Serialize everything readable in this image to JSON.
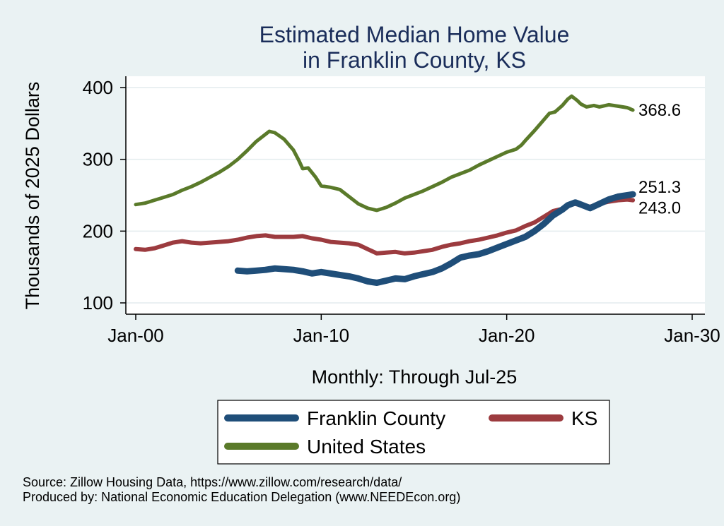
{
  "chart_data": {
    "type": "line",
    "title_line1": "Estimated Median Home Value",
    "title_line2": "in Franklin County, KS",
    "xlabel": "Monthly: Through Jul-25",
    "ylabel": "Thousands of 2025 Dollars",
    "xlim": [
      2000.0,
      2030.0
    ],
    "ylim": [
      100,
      400
    ],
    "x_ticks": [
      {
        "value": 2000,
        "label": "Jan-00"
      },
      {
        "value": 2010,
        "label": "Jan-10"
      },
      {
        "value": 2020,
        "label": "Jan-20"
      },
      {
        "value": 2030,
        "label": "Jan-30"
      }
    ],
    "y_ticks": [
      100,
      200,
      300,
      400
    ],
    "grid": true,
    "legend_position": "bottom",
    "series": [
      {
        "name": "United States",
        "color": "#5a7a2a",
        "end_label": "368.6",
        "points": [
          [
            2000.0,
            237
          ],
          [
            2000.5,
            239
          ],
          [
            2001.0,
            243
          ],
          [
            2001.5,
            247
          ],
          [
            2002.0,
            251
          ],
          [
            2002.5,
            257
          ],
          [
            2003.0,
            262
          ],
          [
            2003.5,
            268
          ],
          [
            2004.0,
            275
          ],
          [
            2004.5,
            282
          ],
          [
            2005.0,
            290
          ],
          [
            2005.5,
            300
          ],
          [
            2006.0,
            312
          ],
          [
            2006.5,
            325
          ],
          [
            2007.0,
            335
          ],
          [
            2007.2,
            339
          ],
          [
            2007.5,
            337
          ],
          [
            2008.0,
            328
          ],
          [
            2008.5,
            313
          ],
          [
            2008.8,
            298
          ],
          [
            2009.0,
            287
          ],
          [
            2009.3,
            288
          ],
          [
            2009.7,
            275
          ],
          [
            2010.0,
            263
          ],
          [
            2010.5,
            261
          ],
          [
            2011.0,
            258
          ],
          [
            2011.5,
            248
          ],
          [
            2012.0,
            238
          ],
          [
            2012.5,
            232
          ],
          [
            2013.0,
            229
          ],
          [
            2013.5,
            233
          ],
          [
            2014.0,
            239
          ],
          [
            2014.5,
            246
          ],
          [
            2015.0,
            251
          ],
          [
            2015.5,
            256
          ],
          [
            2016.0,
            262
          ],
          [
            2016.5,
            268
          ],
          [
            2017.0,
            275
          ],
          [
            2017.5,
            280
          ],
          [
            2018.0,
            285
          ],
          [
            2018.5,
            292
          ],
          [
            2019.0,
            298
          ],
          [
            2019.5,
            304
          ],
          [
            2020.0,
            310
          ],
          [
            2020.5,
            314
          ],
          [
            2020.8,
            320
          ],
          [
            2021.0,
            326
          ],
          [
            2021.5,
            340
          ],
          [
            2022.0,
            355
          ],
          [
            2022.3,
            364
          ],
          [
            2022.6,
            366
          ],
          [
            2023.0,
            375
          ],
          [
            2023.3,
            384
          ],
          [
            2023.5,
            388
          ],
          [
            2023.8,
            382
          ],
          [
            2024.0,
            377
          ],
          [
            2024.3,
            373
          ],
          [
            2024.7,
            375
          ],
          [
            2025.0,
            373
          ],
          [
            2025.5,
            376
          ],
          [
            2026.0,
            374
          ],
          [
            2026.5,
            372
          ],
          [
            2026.8,
            368.6
          ]
        ]
      },
      {
        "name": "KS",
        "color": "#9c3b3f",
        "end_label": "243.0",
        "points": [
          [
            2000.0,
            175
          ],
          [
            2000.5,
            174
          ],
          [
            2001.0,
            176
          ],
          [
            2001.5,
            180
          ],
          [
            2002.0,
            184
          ],
          [
            2002.5,
            186
          ],
          [
            2003.0,
            184
          ],
          [
            2003.5,
            183
          ],
          [
            2004.0,
            184
          ],
          [
            2004.5,
            185
          ],
          [
            2005.0,
            186
          ],
          [
            2005.5,
            188
          ],
          [
            2006.0,
            191
          ],
          [
            2006.5,
            193
          ],
          [
            2007.0,
            194
          ],
          [
            2007.5,
            192
          ],
          [
            2008.0,
            192
          ],
          [
            2008.5,
            192
          ],
          [
            2009.0,
            193
          ],
          [
            2009.5,
            190
          ],
          [
            2010.0,
            188
          ],
          [
            2010.5,
            185
          ],
          [
            2011.0,
            184
          ],
          [
            2011.5,
            183
          ],
          [
            2012.0,
            181
          ],
          [
            2012.5,
            175
          ],
          [
            2013.0,
            169
          ],
          [
            2013.5,
            170
          ],
          [
            2014.0,
            171
          ],
          [
            2014.5,
            169
          ],
          [
            2015.0,
            170
          ],
          [
            2015.5,
            172
          ],
          [
            2016.0,
            174
          ],
          [
            2016.5,
            178
          ],
          [
            2017.0,
            181
          ],
          [
            2017.5,
            183
          ],
          [
            2018.0,
            186
          ],
          [
            2018.5,
            188
          ],
          [
            2019.0,
            191
          ],
          [
            2019.5,
            194
          ],
          [
            2020.0,
            198
          ],
          [
            2020.5,
            201
          ],
          [
            2021.0,
            207
          ],
          [
            2021.5,
            212
          ],
          [
            2022.0,
            220
          ],
          [
            2022.5,
            228
          ],
          [
            2023.0,
            231
          ],
          [
            2023.3,
            236
          ],
          [
            2023.7,
            238
          ],
          [
            2024.0,
            236
          ],
          [
            2024.5,
            234
          ],
          [
            2025.0,
            238
          ],
          [
            2025.5,
            241
          ],
          [
            2026.0,
            243
          ],
          [
            2026.5,
            244
          ],
          [
            2026.8,
            243.0
          ]
        ]
      },
      {
        "name": "Franklin County",
        "color": "#1f4e79",
        "end_label": "251.3",
        "points": [
          [
            2005.5,
            145
          ],
          [
            2006.0,
            144
          ],
          [
            2006.5,
            145
          ],
          [
            2007.0,
            146
          ],
          [
            2007.5,
            148
          ],
          [
            2008.0,
            147
          ],
          [
            2008.5,
            146
          ],
          [
            2009.0,
            144
          ],
          [
            2009.5,
            141
          ],
          [
            2010.0,
            143
          ],
          [
            2010.5,
            141
          ],
          [
            2011.0,
            139
          ],
          [
            2011.5,
            137
          ],
          [
            2012.0,
            134
          ],
          [
            2012.5,
            130
          ],
          [
            2013.0,
            128
          ],
          [
            2013.5,
            131
          ],
          [
            2014.0,
            134
          ],
          [
            2014.5,
            133
          ],
          [
            2015.0,
            137
          ],
          [
            2015.5,
            140
          ],
          [
            2016.0,
            143
          ],
          [
            2016.5,
            148
          ],
          [
            2017.0,
            155
          ],
          [
            2017.5,
            163
          ],
          [
            2018.0,
            166
          ],
          [
            2018.5,
            168
          ],
          [
            2019.0,
            172
          ],
          [
            2019.5,
            177
          ],
          [
            2020.0,
            182
          ],
          [
            2020.5,
            187
          ],
          [
            2021.0,
            192
          ],
          [
            2021.5,
            200
          ],
          [
            2022.0,
            210
          ],
          [
            2022.5,
            222
          ],
          [
            2023.0,
            230
          ],
          [
            2023.3,
            236
          ],
          [
            2023.7,
            240
          ],
          [
            2024.0,
            237
          ],
          [
            2024.5,
            232
          ],
          [
            2025.0,
            238
          ],
          [
            2025.5,
            244
          ],
          [
            2026.0,
            248
          ],
          [
            2026.5,
            250
          ],
          [
            2026.8,
            251.3
          ]
        ]
      }
    ],
    "source_line1": "Source: Zillow Housing Data, https://www.zillow.com/research/data/",
    "source_line2": "Produced by: National Economic Education Delegation (www.NEEDEcon.org)"
  }
}
